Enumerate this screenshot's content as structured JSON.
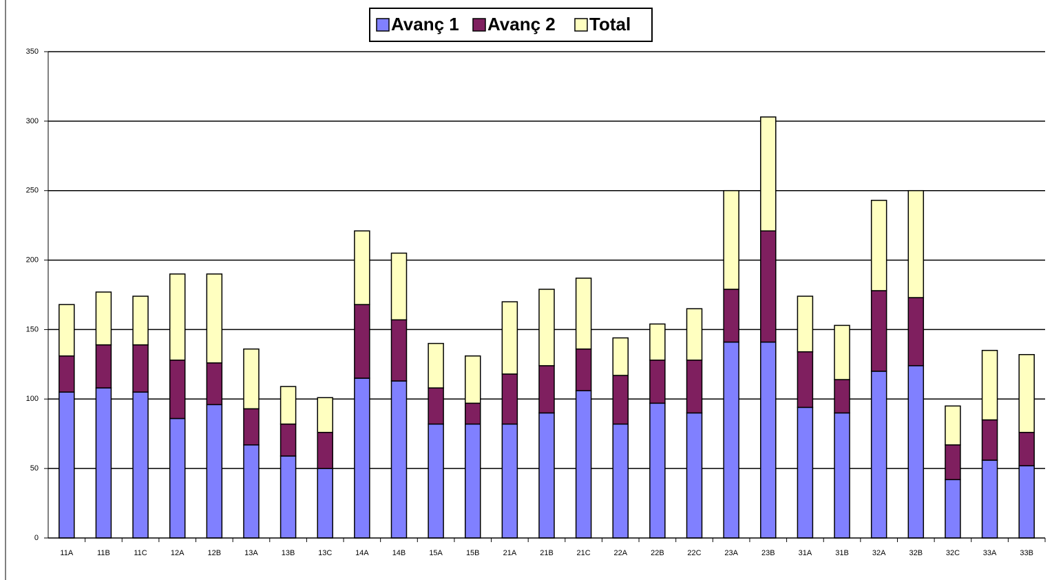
{
  "chart_data": {
    "type": "stacked_bar",
    "categories": [
      "11A",
      "11B",
      "11C",
      "12A",
      "12B",
      "13A",
      "13B",
      "13C",
      "14A",
      "14B",
      "15A",
      "15B",
      "21A",
      "21B",
      "21C",
      "22A",
      "22B",
      "22C",
      "23A",
      "23B",
      "31A",
      "31B",
      "32A",
      "32B",
      "32C",
      "33A",
      "33B"
    ],
    "series": [
      {
        "name": "Avanç 1",
        "color": "#8080ff",
        "values": [
          105,
          108,
          105,
          86,
          96,
          67,
          59,
          50,
          115,
          113,
          82,
          82,
          82,
          90,
          106,
          82,
          97,
          90,
          141,
          141,
          94,
          90,
          120,
          124,
          42,
          56,
          52
        ]
      },
      {
        "name": "Avanç 2",
        "color": "#7f1f5f",
        "values": [
          26,
          31,
          34,
          42,
          30,
          26,
          23,
          26,
          53,
          44,
          26,
          15,
          36,
          34,
          30,
          35,
          31,
          38,
          38,
          80,
          40,
          24,
          58,
          49,
          25,
          29,
          24
        ]
      },
      {
        "name": "Total",
        "color": "#ffffc0",
        "values": [
          37,
          38,
          35,
          62,
          64,
          43,
          27,
          25,
          53,
          48,
          32,
          34,
          52,
          55,
          51,
          27,
          26,
          37,
          71,
          82,
          40,
          39,
          65,
          77,
          28,
          50,
          56
        ]
      }
    ],
    "ylim": [
      0,
      350
    ],
    "yticks": [
      0,
      50,
      100,
      150,
      200,
      250,
      300,
      350
    ],
    "grid": true,
    "legend": "top"
  }
}
